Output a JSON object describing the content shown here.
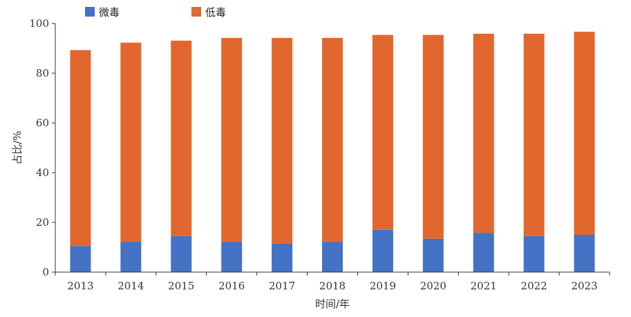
{
  "chart_data": {
    "type": "bar",
    "stacked": true,
    "categories": [
      "2013",
      "2014",
      "2015",
      "2016",
      "2017",
      "2018",
      "2019",
      "2020",
      "2021",
      "2022",
      "2023"
    ],
    "series": [
      {
        "name": "微毒",
        "color": "#4472C4",
        "values": [
          10.5,
          12.2,
          14.5,
          12.2,
          11.5,
          12.2,
          17.0,
          13.4,
          15.8,
          14.5,
          15.0
        ]
      },
      {
        "name": "低毒",
        "color": "#E2672F",
        "values": [
          78.8,
          80.1,
          78.6,
          82.0,
          82.7,
          82.0,
          78.4,
          82.0,
          80.1,
          81.4,
          81.7
        ]
      }
    ],
    "ylim": [
      0,
      100
    ],
    "yticks": [
      "0",
      "20",
      "40",
      "60",
      "80",
      "100"
    ],
    "xlabel": "时间/年",
    "ylabel": "占比/%",
    "legend_position": "top-left",
    "grid": false
  }
}
